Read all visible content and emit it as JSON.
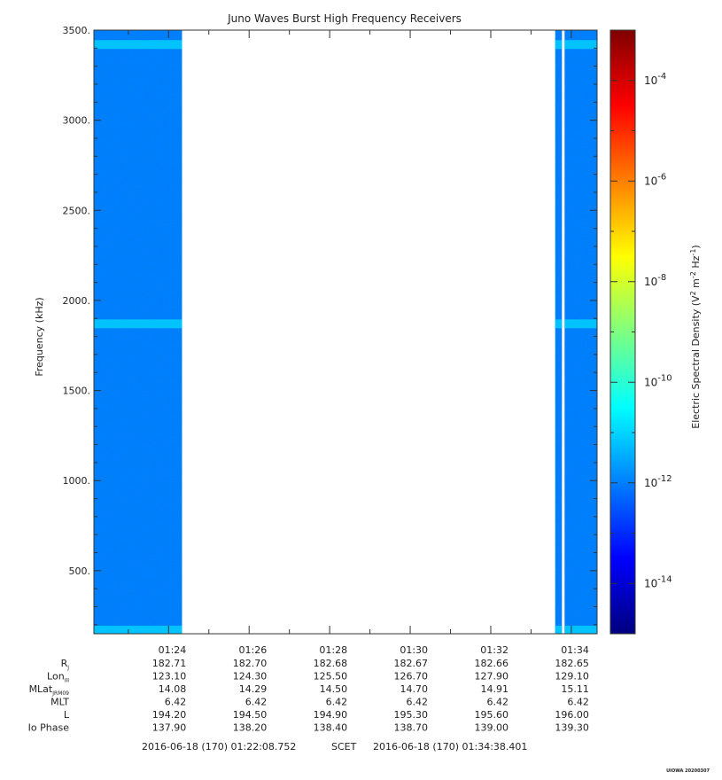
{
  "chart_data": {
    "type": "heatmap",
    "title": "Juno Waves Burst High Frequency Receivers",
    "ylabel": "Frequency (kHz)",
    "ylim": [
      150,
      3500
    ],
    "y_ticks": [
      500,
      1000,
      1500,
      2000,
      2500,
      3000,
      3500
    ],
    "y_tick_labels": [
      "500.",
      "1000.",
      "1500.",
      "2000.",
      "2500.",
      "3000.",
      "3500."
    ],
    "xlim": [
      "2016-06-18T01:22:08.752",
      "2016-06-18T01:34:38.401"
    ],
    "x_ticks": [
      "2016-06-18T01:24:00",
      "2016-06-18T01:26:00",
      "2016-06-18T01:28:00",
      "2016-06-18T01:30:00",
      "2016-06-18T01:32:00",
      "2016-06-18T01:34:00"
    ],
    "x_tick_labels": [
      "01:24",
      "01:26",
      "01:28",
      "01:30",
      "01:32",
      "01:34"
    ],
    "data_segments": [
      {
        "start": "2016-06-18T01:22:08.752",
        "end": "2016-06-18T01:24:20"
      },
      {
        "start": "2016-06-18T01:33:36",
        "end": "2016-06-18T01:33:46"
      },
      {
        "start": "2016-06-18T01:33:50",
        "end": "2016-06-18T01:34:38.401"
      }
    ],
    "background_level": 1e-12,
    "enhanced_bands_khz": [
      {
        "frequency": 3420,
        "level": 1e-11
      },
      {
        "frequency": 1870,
        "level": 1e-11
      },
      {
        "frequency": 170,
        "level": 1e-11
      }
    ],
    "colorbar": {
      "label": "Electric Spectral Density (V² m⁻² Hz⁻¹)",
      "label_main": "Electric Spectral Density (V",
      "label_tail": " Hz",
      "scale": "log",
      "min": 1e-15,
      "max": 0.001,
      "tick_values": [
        1e-14,
        1e-12,
        1e-10,
        1e-08,
        1e-06,
        0.0001
      ],
      "tick_exponents": [
        "-14",
        "-12",
        "-10",
        "-8",
        "-6",
        "-4"
      ],
      "colormap": [
        "#00007f",
        "#0000ff",
        "#007fff",
        "#00ffff",
        "#7fff7f",
        "#ffff00",
        "#ff7f00",
        "#ff0000",
        "#7f0000"
      ]
    },
    "ephemeris": {
      "row_labels": [
        {
          "name": "R",
          "sub": "J"
        },
        {
          "name": "Lon",
          "sub": "III"
        },
        {
          "name": "MLat",
          "sub": "JRM09"
        },
        {
          "name": "MLT",
          "sub": ""
        },
        {
          "name": "L",
          "sub": ""
        },
        {
          "name": "Io Phase",
          "sub": ""
        }
      ],
      "rows": [
        [
          "182.71",
          "182.70",
          "182.68",
          "182.67",
          "182.66",
          "182.65"
        ],
        [
          "123.10",
          "124.30",
          "125.50",
          "126.70",
          "127.90",
          "129.10"
        ],
        [
          "14.08",
          "14.29",
          "14.50",
          "14.70",
          "14.91",
          "15.11"
        ],
        [
          "6.42",
          "6.42",
          "6.42",
          "6.42",
          "6.42",
          "6.42"
        ],
        [
          "194.20",
          "194.50",
          "194.90",
          "195.30",
          "195.60",
          "196.00"
        ],
        [
          "137.90",
          "138.20",
          "138.40",
          "138.70",
          "139.00",
          "139.30"
        ]
      ]
    },
    "time_range": {
      "start": "2016-06-18 (170) 01:22:08.752",
      "frame": "SCET",
      "end": "2016-06-18 (170) 01:34:38.401"
    },
    "credit": "UIOWA 20200307"
  }
}
